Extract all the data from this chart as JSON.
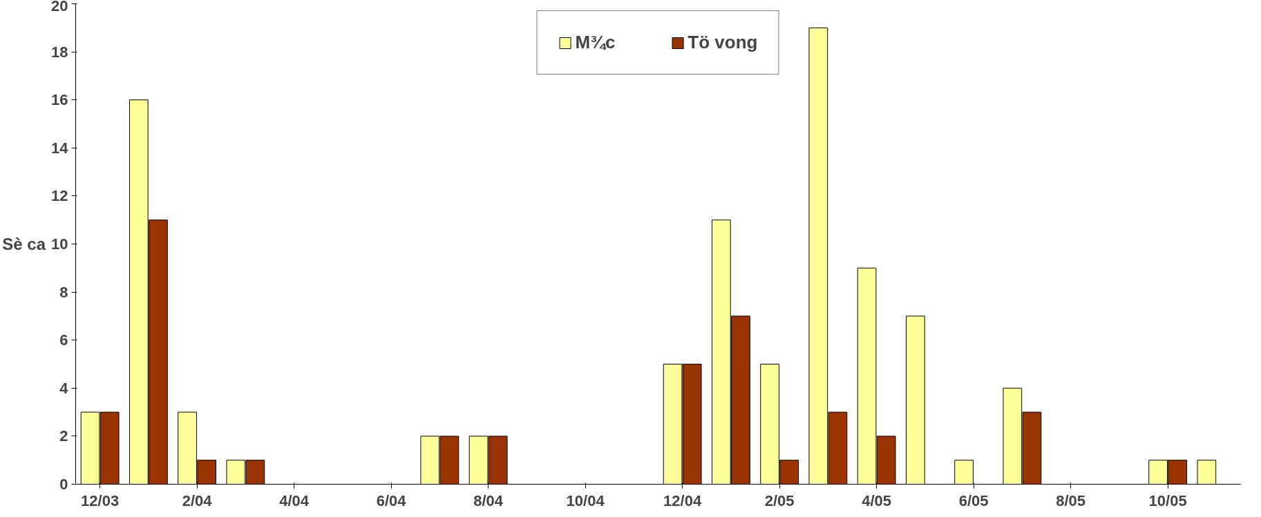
{
  "chart_data": {
    "type": "bar",
    "ylabel": "Sè ca",
    "categories": [
      "12/03",
      null,
      "2/04",
      null,
      "4/04",
      null,
      "6/04",
      null,
      "8/04",
      null,
      "10/04",
      null,
      "12/04",
      null,
      "2/05",
      null,
      "4/05",
      null,
      "6/05",
      null,
      "8/05",
      null,
      "10/05",
      null
    ],
    "series": [
      {
        "name": "M¾c",
        "color": "#ffff99",
        "values": [
          3,
          16,
          3,
          1,
          0,
          0,
          0,
          2,
          2,
          0,
          0,
          0,
          5,
          11,
          5,
          19,
          9,
          7,
          1,
          4,
          0,
          0,
          1,
          1
        ]
      },
      {
        "name": "Tö vong",
        "color": "#993300",
        "values": [
          3,
          11,
          1,
          1,
          0,
          0,
          0,
          2,
          2,
          0,
          0,
          0,
          5,
          7,
          1,
          3,
          2,
          0,
          0,
          3,
          0,
          0,
          1,
          0
        ]
      }
    ],
    "ylim": [
      0,
      20
    ],
    "yticks": [
      0,
      2,
      4,
      6,
      8,
      10,
      12,
      14,
      16,
      18,
      20
    ],
    "grid": false,
    "legend": "top"
  }
}
